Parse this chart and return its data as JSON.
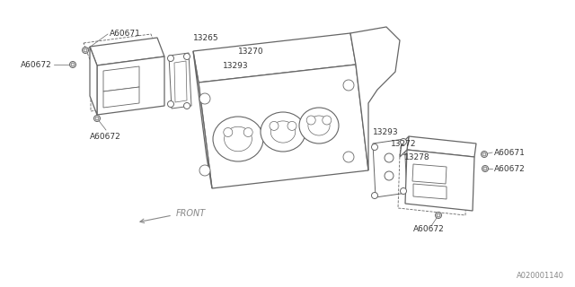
{
  "bg_color": "#ffffff",
  "line_color": "#666666",
  "label_color": "#333333",
  "watermark": "A020001140",
  "labels": {
    "A60671_tl": "A60671",
    "A60672_tl": "A60672",
    "13265": "13265",
    "13270": "13270",
    "13293_top": "13293",
    "A60672_mid": "A60672",
    "13293_right": "13293",
    "13272": "13272",
    "13278": "13278",
    "A60671_br": "A60671",
    "A60672_br": "A60672",
    "A60672_bot": "A60672",
    "front": "FRONT"
  },
  "font_size_labels": 6.5,
  "font_size_watermark": 6
}
